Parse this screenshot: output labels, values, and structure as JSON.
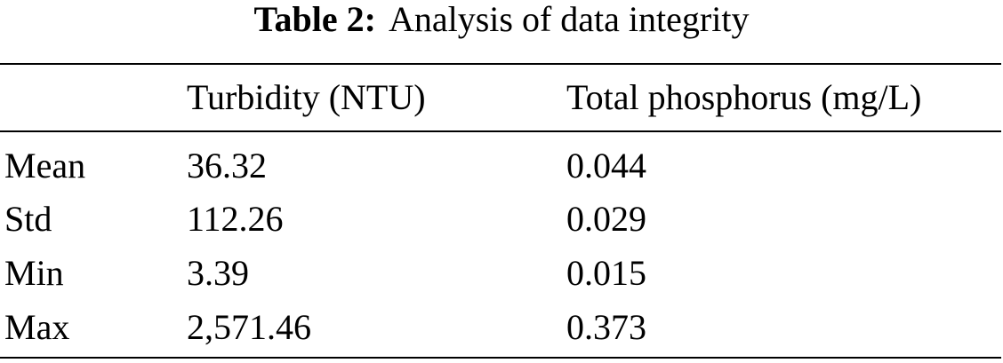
{
  "caption": {
    "label": "Table 2:",
    "title": "Analysis of data integrity"
  },
  "table": {
    "header": [
      "Turbidity (NTU)",
      "Total phosphorus (mg/L)"
    ],
    "rows": [
      [
        "Mean",
        "36.32",
        "0.044"
      ],
      [
        "Std",
        "112.26",
        "0.029"
      ],
      [
        "Min",
        "3.39",
        "0.015"
      ],
      [
        "Max",
        "2,571.46",
        "0.373"
      ]
    ]
  }
}
